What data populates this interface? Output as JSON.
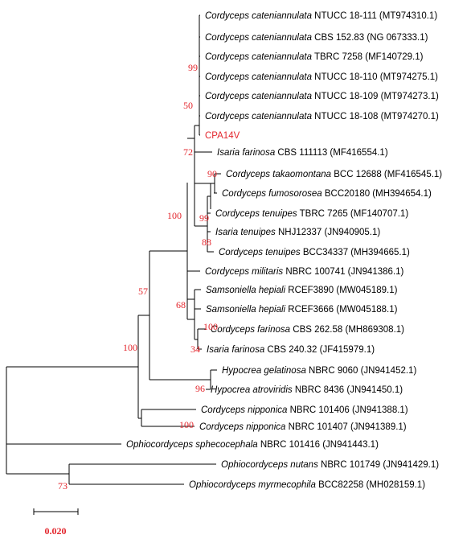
{
  "taxa": [
    {
      "id": "t1",
      "genus": "Cordyceps cateniannulata",
      "rest": " NTUCC 18-111 (MT974310.1)"
    },
    {
      "id": "t2",
      "genus": "Cordyceps cateniannulata",
      "rest": " CBS 152.83 (NG 067333.1)"
    },
    {
      "id": "t3",
      "genus": "Cordyceps cateniannulata",
      "rest": " TBRC 7258 (MF140729.1)"
    },
    {
      "id": "t4",
      "genus": "Cordyceps cateniannulata",
      "rest": " NTUCC 18-110 (MT974275.1)"
    },
    {
      "id": "t5",
      "genus": "Cordyceps cateniannulata",
      "rest": " NTUCC 18-109 (MT974273.1)"
    },
    {
      "id": "t6",
      "genus": "Cordyceps cateniannulata",
      "rest": " NTUCC 18-108 (MT974270.1)"
    },
    {
      "id": "t7",
      "genus": "",
      "rest": "CPA14V",
      "highlight": true
    },
    {
      "id": "t8",
      "genus": "Isaria farinosa",
      "rest": " CBS 111113 (MF416554.1)"
    },
    {
      "id": "t9",
      "genus": "Cordyceps takaomontana",
      "rest": " BCC 12688 (MF416545.1)"
    },
    {
      "id": "t10",
      "genus": "Cordyceps fumosorosea",
      "rest": " BCC20180 (MH394654.1)"
    },
    {
      "id": "t11",
      "genus": "Cordyceps tenuipes",
      "rest": " TBRC 7265 (MF140707.1)"
    },
    {
      "id": "t12",
      "genus": "Isaria tenuipes",
      "rest": " NHJ12337 (JN940905.1)"
    },
    {
      "id": "t13",
      "genus": "Cordyceps tenuipes",
      "rest": " BCC34337 (MH394665.1)"
    },
    {
      "id": "t14",
      "genus": "Cordyceps militaris",
      "rest": " NBRC 100741 (JN941386.1)"
    },
    {
      "id": "t15",
      "genus": "Samsoniella hepiali",
      "rest": " RCEF3890 (MW045189.1)"
    },
    {
      "id": "t16",
      "genus": "Samsoniella hepiali",
      "rest": " RCEF3666 (MW045188.1)"
    },
    {
      "id": "t17",
      "genus": "Cordyceps farinosa",
      "rest": " CBS 262.58 (MH869308.1)"
    },
    {
      "id": "t18",
      "genus": "Isaria farinosa",
      "rest": " CBS 240.32 (JF415979.1)"
    },
    {
      "id": "t19",
      "genus": "Hypocrea gelatinosa",
      "rest": " NBRC 9060 (JN941452.1)"
    },
    {
      "id": "t20",
      "genus": "Hypocrea atroviridis",
      "rest": " NBRC 8436 (JN941450.1)"
    },
    {
      "id": "t21",
      "genus": "Cordyceps nipponica",
      "rest": " NBRC 101406 (JN941388.1)"
    },
    {
      "id": "t22",
      "genus": "Cordyceps nipponica",
      "rest": " NBRC 101407 (JN941389.1)"
    },
    {
      "id": "t23",
      "genus": "Ophiocordyceps sphecocephala",
      "rest": " NBRC 101416 (JN941443.1)"
    },
    {
      "id": "t24",
      "genus": "Ophiocordyceps nutans",
      "rest": " NBRC 101749 (JN941429.1)"
    },
    {
      "id": "t25",
      "genus": "Ophiocordyceps myrmecophila",
      "rest": " BCC82258 (MH028159.1)"
    }
  ],
  "bootstrap_values": [
    "99",
    "50",
    "72",
    "90",
    "100",
    "99",
    "88",
    "57",
    "68",
    "100",
    "100",
    "34",
    "96",
    "100",
    "73"
  ],
  "scale_bar": {
    "value": "0.020"
  },
  "colors": {
    "support": "#e3262d",
    "highlight": "#e3262d",
    "branch": "#000000"
  }
}
